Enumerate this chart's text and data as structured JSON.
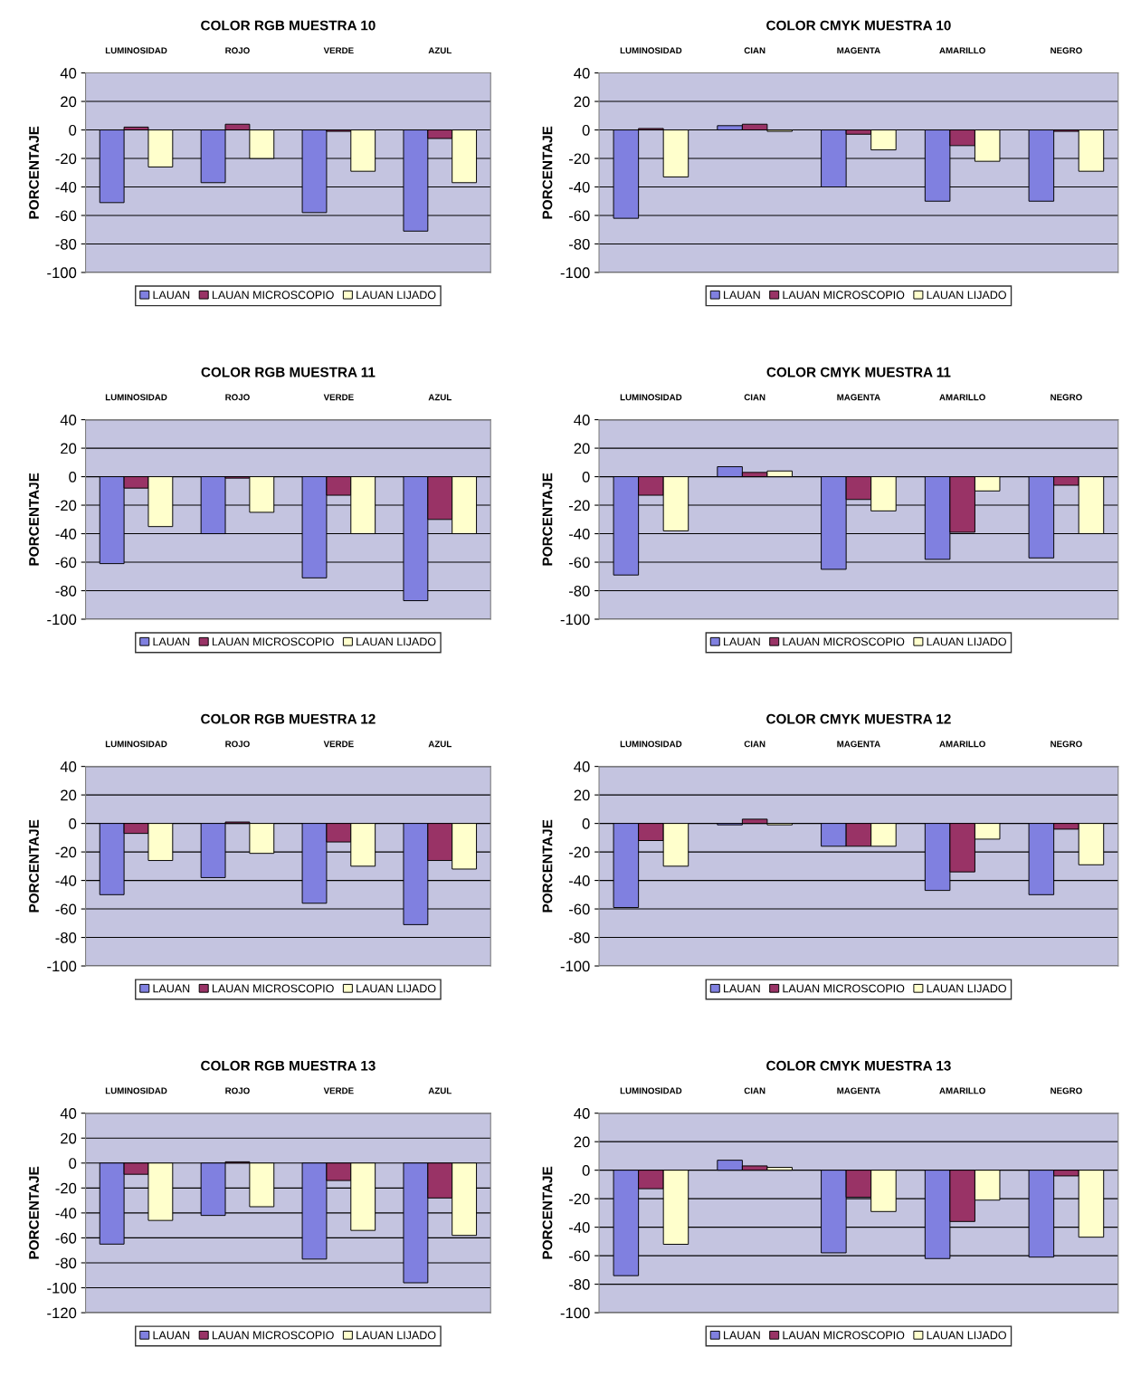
{
  "chart_data": [
    {
      "type": "bar",
      "title": "COLOR RGB MUESTRA 10",
      "ylabel": "PORCENTAJE",
      "categories": [
        "LUMINOSIDAD",
        "ROJO",
        "VERDE",
        "AZUL"
      ],
      "series": [
        {
          "name": "LAUAN",
          "color": "#8080e0",
          "values": [
            -51,
            -37,
            -58,
            -71
          ]
        },
        {
          "name": "LAUAN MICROSCOPIO",
          "color": "#993366",
          "values": [
            2,
            4,
            -1,
            -6
          ]
        },
        {
          "name": "LAUAN LIJADO",
          "color": "#ffffcc",
          "values": [
            -26,
            -20,
            -29,
            -37
          ]
        }
      ],
      "ylim": [
        -100,
        40
      ],
      "yticks": [
        -100,
        -80,
        -60,
        -40,
        -20,
        0,
        20,
        40
      ],
      "grid": "y",
      "legend": "bottom"
    },
    {
      "type": "bar",
      "title": "COLOR CMYK MUESTRA 10",
      "ylabel": "PORCENTAJE",
      "categories": [
        "LUMINOSIDAD",
        "CIAN",
        "MAGENTA",
        "AMARILLO",
        "NEGRO"
      ],
      "series": [
        {
          "name": "LAUAN",
          "color": "#8080e0",
          "values": [
            -62,
            3,
            -40,
            -50,
            -50
          ]
        },
        {
          "name": "LAUAN MICROSCOPIO",
          "color": "#993366",
          "values": [
            1,
            4,
            -3,
            -11,
            -1
          ]
        },
        {
          "name": "LAUAN LIJADO",
          "color": "#ffffcc",
          "values": [
            -33,
            -1,
            -14,
            -22,
            -29
          ]
        }
      ],
      "ylim": [
        -100,
        40
      ],
      "yticks": [
        -100,
        -80,
        -60,
        -40,
        -20,
        0,
        20,
        40
      ],
      "grid": "y",
      "legend": "bottom"
    },
    {
      "type": "bar",
      "title": "COLOR RGB MUESTRA 11",
      "ylabel": "PORCENTAJE",
      "categories": [
        "LUMINOSIDAD",
        "ROJO",
        "VERDE",
        "AZUL"
      ],
      "series": [
        {
          "name": "LAUAN",
          "color": "#8080e0",
          "values": [
            -61,
            -40,
            -71,
            -87
          ]
        },
        {
          "name": "LAUAN MICROSCOPIO",
          "color": "#993366",
          "values": [
            -8,
            -1,
            -13,
            -30
          ]
        },
        {
          "name": "LAUAN LIJADO",
          "color": "#ffffcc",
          "values": [
            -35,
            -25,
            -40,
            -40
          ]
        }
      ],
      "ylim": [
        -100,
        40
      ],
      "yticks": [
        -100,
        -80,
        -60,
        -40,
        -20,
        0,
        20,
        40
      ],
      "grid": "y",
      "legend": "bottom"
    },
    {
      "type": "bar",
      "title": "COLOR CMYK MUESTRA 11",
      "ylabel": "PORCENTAJE",
      "categories": [
        "LUMINOSIDAD",
        "CIAN",
        "MAGENTA",
        "AMARILLO",
        "NEGRO"
      ],
      "series": [
        {
          "name": "LAUAN",
          "color": "#8080e0",
          "values": [
            -69,
            7,
            -65,
            -58,
            -57
          ]
        },
        {
          "name": "LAUAN MICROSCOPIO",
          "color": "#993366",
          "values": [
            -13,
            3,
            -16,
            -39,
            -6
          ]
        },
        {
          "name": "LAUAN LIJADO",
          "color": "#ffffcc",
          "values": [
            -38,
            4,
            -24,
            -10,
            -40
          ]
        }
      ],
      "ylim": [
        -100,
        40
      ],
      "yticks": [
        -100,
        -80,
        -60,
        -40,
        -20,
        0,
        20,
        40
      ],
      "grid": "y",
      "legend": "bottom"
    },
    {
      "type": "bar",
      "title": "COLOR RGB MUESTRA 12",
      "ylabel": "PORCENTAJE",
      "categories": [
        "LUMINOSIDAD",
        "ROJO",
        "VERDE",
        "AZUL"
      ],
      "series": [
        {
          "name": "LAUAN",
          "color": "#8080e0",
          "values": [
            -50,
            -38,
            -56,
            -71
          ]
        },
        {
          "name": "LAUAN MICROSCOPIO",
          "color": "#993366",
          "values": [
            -7,
            1,
            -13,
            -26
          ]
        },
        {
          "name": "LAUAN LIJADO",
          "color": "#ffffcc",
          "values": [
            -26,
            -21,
            -30,
            -32
          ]
        }
      ],
      "ylim": [
        -100,
        40
      ],
      "yticks": [
        -100,
        -80,
        -60,
        -40,
        -20,
        0,
        20,
        40
      ],
      "grid": "y",
      "legend": "bottom"
    },
    {
      "type": "bar",
      "title": "COLOR CMYK MUESTRA 12",
      "ylabel": "PORCENTAJE",
      "categories": [
        "LUMINOSIDAD",
        "CIAN",
        "MAGENTA",
        "AMARILLO",
        "NEGRO"
      ],
      "series": [
        {
          "name": "LAUAN",
          "color": "#8080e0",
          "values": [
            -59,
            -1,
            -16,
            -47,
            -50
          ]
        },
        {
          "name": "LAUAN MICROSCOPIO",
          "color": "#993366",
          "values": [
            -12,
            3,
            -16,
            -34,
            -4
          ]
        },
        {
          "name": "LAUAN LIJADO",
          "color": "#ffffcc",
          "values": [
            -30,
            -1,
            -16,
            -11,
            -29
          ]
        }
      ],
      "ylim": [
        -100,
        40
      ],
      "yticks": [
        -100,
        -80,
        -60,
        -40,
        -20,
        0,
        20,
        40
      ],
      "grid": "y",
      "legend": "bottom"
    },
    {
      "type": "bar",
      "title": "COLOR RGB MUESTRA 13",
      "ylabel": "PORCENTAJE",
      "categories": [
        "LUMINOSIDAD",
        "ROJO",
        "VERDE",
        "AZUL"
      ],
      "series": [
        {
          "name": "LAUAN",
          "color": "#8080e0",
          "values": [
            -65,
            -42,
            -77,
            -96
          ]
        },
        {
          "name": "LAUAN MICROSCOPIO",
          "color": "#993366",
          "values": [
            -9,
            1,
            -14,
            -28
          ]
        },
        {
          "name": "LAUAN LIJADO",
          "color": "#ffffcc",
          "values": [
            -46,
            -35,
            -54,
            -58
          ]
        }
      ],
      "ylim": [
        -120,
        40
      ],
      "yticks": [
        -120,
        -100,
        -80,
        -60,
        -40,
        -20,
        0,
        20,
        40
      ],
      "grid": "y",
      "legend": "bottom"
    },
    {
      "type": "bar",
      "title": "COLOR CMYK MUESTRA 13",
      "ylabel": "PORCENTAJE",
      "categories": [
        "LUMINOSIDAD",
        "CIAN",
        "MAGENTA",
        "AMARILLO",
        "NEGRO"
      ],
      "series": [
        {
          "name": "LAUAN",
          "color": "#8080e0",
          "values": [
            -74,
            7,
            -58,
            -62,
            -61
          ]
        },
        {
          "name": "LAUAN MICROSCOPIO",
          "color": "#993366",
          "values": [
            -13,
            3,
            -19,
            -36,
            -4
          ]
        },
        {
          "name": "LAUAN LIJADO",
          "color": "#ffffcc",
          "values": [
            -52,
            2,
            -29,
            -21,
            -47
          ]
        }
      ],
      "ylim": [
        -100,
        40
      ],
      "yticks": [
        -100,
        -80,
        -60,
        -40,
        -20,
        0,
        20,
        40
      ],
      "grid": "y",
      "legend": "bottom"
    }
  ]
}
